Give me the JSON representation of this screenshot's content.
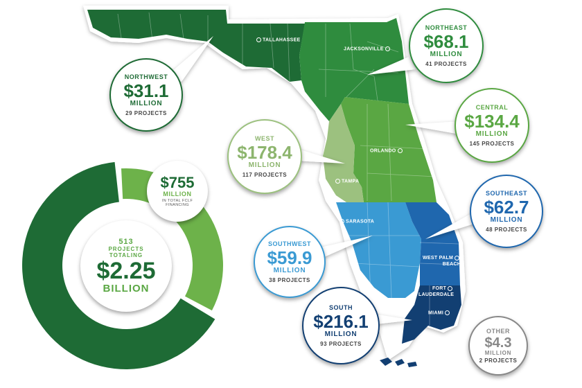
{
  "regions": [
    {
      "key": "northwest",
      "name": "NORTHWEST",
      "amount": "$31.1",
      "unit": "MILLION",
      "projects": "29 PROJECTS",
      "color": "#1e6b35"
    },
    {
      "key": "northeast",
      "name": "NORTHEAST",
      "amount": "$68.1",
      "unit": "MILLION",
      "projects": "41 PROJECTS",
      "color": "#2f8c3e"
    },
    {
      "key": "central",
      "name": "CENTRAL",
      "amount": "$134.4",
      "unit": "MILLION",
      "projects": "145 PROJECTS",
      "color": "#5aa743"
    },
    {
      "key": "west",
      "name": "WEST",
      "amount": "$178.4",
      "unit": "MILLION",
      "projects": "117 PROJECTS",
      "color": "#9cc17f"
    },
    {
      "key": "southwest",
      "name": "SOUTHWEST",
      "amount": "$59.9",
      "unit": "MILLION",
      "projects": "38 PROJECTS",
      "color": "#3a9ad3"
    },
    {
      "key": "southeast",
      "name": "SOUTHEAST",
      "amount": "$62.7",
      "unit": "MILLION",
      "projects": "48 PROJECTS",
      "color": "#1f67ae"
    },
    {
      "key": "south",
      "name": "SOUTH",
      "amount": "$216.1",
      "unit": "MILLION",
      "projects": "93 PROJECTS",
      "color": "#123f72"
    },
    {
      "key": "other",
      "name": "OTHER",
      "amount": "$4.3",
      "unit": "MILLION",
      "projects": "2 PROJECTS",
      "color": "#888888"
    }
  ],
  "cities": {
    "tallahassee": "TALLAHASSEE",
    "jacksonville": "JACKSONVILLE",
    "orlando": "ORLANDO",
    "tampa": "TAMPA",
    "sarasota": "SARASOTA",
    "west_palm_1": "WEST PALM",
    "west_palm_2": "BEACH",
    "fort_1": "FORT",
    "fort_2": "LAUDERDALE",
    "miami": "MIAMI"
  },
  "donut": {
    "center_projects": "513",
    "center_totaling_1": "PROJECTS",
    "center_totaling_2": "TOTALING",
    "center_amount": "$2.25",
    "center_unit": "BILLION",
    "callout_amount": "$755",
    "callout_unit": "MILLION",
    "callout_note_1": "IN TOTAL FCLF",
    "callout_note_2": "FINANCING",
    "share_highlight": 0.335,
    "color_main": "#1e6b35",
    "color_highlight": "#6db24a"
  }
}
